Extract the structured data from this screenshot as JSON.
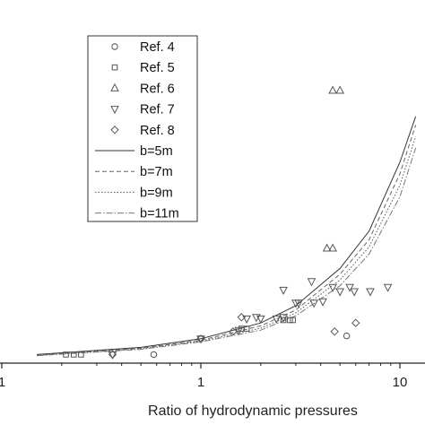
{
  "chart_data": {
    "type": "scatter",
    "title": "",
    "xlabel": "Ratio of hydrodynamic pressures",
    "ylabel": "",
    "xscale": "log",
    "xlim": [
      0.1,
      12
    ],
    "ylim": [
      0,
      11
    ],
    "grid": false,
    "legend_position": "top-left",
    "x_tick_labels": [
      "1",
      "1",
      "10"
    ],
    "series": [
      {
        "name": "Ref. 4",
        "marker": "circle",
        "x": [
          0.58,
          1.0,
          5.4
        ],
        "y": [
          0.3,
          0.85,
          0.95
        ]
      },
      {
        "name": "Ref. 5",
        "marker": "square",
        "x": [
          0.21,
          0.23,
          0.25,
          1.6,
          1.7,
          2.6,
          2.8,
          2.9
        ],
        "y": [
          0.3,
          0.3,
          0.3,
          1.2,
          1.2,
          1.5,
          1.5,
          1.5
        ]
      },
      {
        "name": "Ref. 6",
        "marker": "triangle-up",
        "x": [
          4.6,
          5.0,
          4.3,
          4.6
        ],
        "y": [
          9.5,
          9.5,
          4.0,
          4.0
        ]
      },
      {
        "name": "Ref. 7",
        "marker": "triangle-down",
        "x": [
          0.36,
          1.0,
          1.55,
          1.9,
          2.4,
          3.0,
          3.7,
          4.6,
          5.6,
          8.7,
          3.1,
          3.6,
          2.6,
          4.1,
          5.0,
          5.9,
          7.1,
          1.7,
          2.0,
          2.6
        ],
        "y": [
          0.3,
          0.85,
          1.15,
          1.6,
          1.55,
          2.1,
          2.1,
          2.65,
          2.65,
          2.65,
          2.1,
          2.85,
          2.55,
          2.15,
          2.5,
          2.5,
          2.5,
          1.55,
          1.55,
          1.6
        ]
      },
      {
        "name": "Ref. 8",
        "marker": "diamond",
        "x": [
          0.36,
          1.0,
          1.45,
          1.6,
          4.7,
          6.0
        ],
        "y": [
          0.3,
          0.85,
          1.1,
          1.6,
          1.1,
          1.4
        ]
      },
      {
        "name": "b=5m",
        "style": "solid",
        "x": [
          0.15,
          0.5,
          1,
          2,
          3,
          5,
          7,
          10,
          12
        ],
        "y": [
          0.3,
          0.55,
          0.85,
          1.4,
          2.0,
          3.3,
          4.6,
          7.0,
          8.6
        ]
      },
      {
        "name": "b=7m",
        "style": "dashed",
        "x": [
          0.15,
          0.5,
          1,
          2,
          3,
          5,
          7,
          10,
          12
        ],
        "y": [
          0.28,
          0.52,
          0.8,
          1.3,
          1.85,
          3.1,
          4.3,
          6.6,
          8.3
        ]
      },
      {
        "name": "b=9m",
        "style": "dotted",
        "x": [
          0.15,
          0.5,
          1,
          2,
          3,
          5,
          7,
          10,
          12
        ],
        "y": [
          0.27,
          0.5,
          0.77,
          1.22,
          1.75,
          2.9,
          4.05,
          6.2,
          7.9
        ]
      },
      {
        "name": "b=11m",
        "style": "dashdot",
        "x": [
          0.15,
          0.5,
          1,
          2,
          3,
          5,
          7,
          10,
          12
        ],
        "y": [
          0.26,
          0.48,
          0.74,
          1.15,
          1.65,
          2.7,
          3.8,
          5.8,
          7.5
        ]
      }
    ]
  }
}
